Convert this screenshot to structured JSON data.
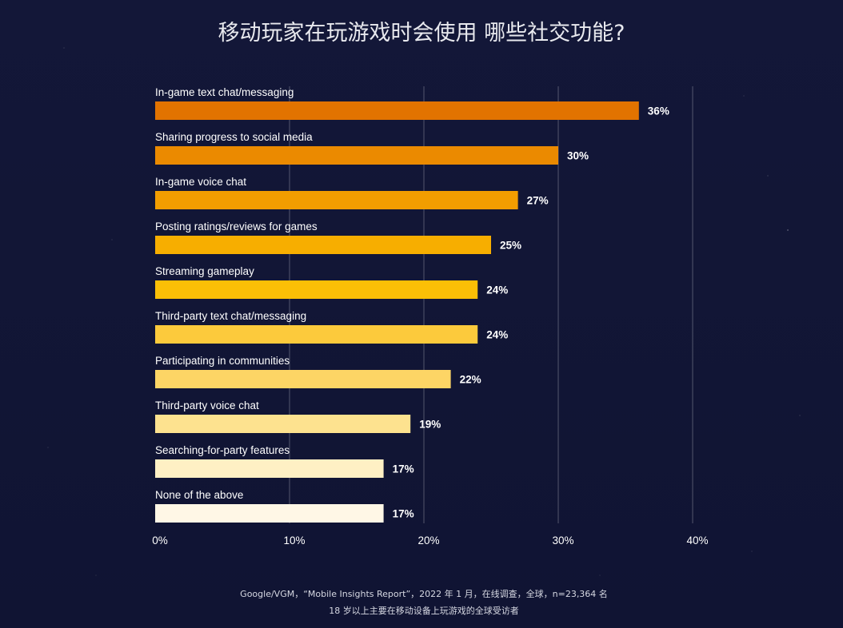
{
  "colors": {
    "background": "#12163a",
    "bars": [
      "#e27300",
      "#eb8a00",
      "#f29d00",
      "#f7ae00",
      "#fbbf06",
      "#fcca3c",
      "#fdd565",
      "#fde28f",
      "#fef0c4",
      "#fff7e6"
    ]
  },
  "footer": {
    "line1": "Google/VGM，“Mobile Insights Report”，2022 年 1 月，在线调查，全球，n=23,364 名",
    "line2": "18 岁以上主要在移动设备上玩游戏的全球受访者"
  },
  "chart_data": {
    "type": "bar",
    "orientation": "horizontal",
    "title": "移动玩家在玩游戏时会使用 哪些社交功能?",
    "categories": [
      "In-game text chat/messaging",
      "Sharing progress to social media",
      "In-game voice chat",
      "Posting ratings/reviews for games",
      "Streaming gameplay",
      "Third-party text chat/messaging",
      "Participating in communities",
      "Third-party voice chat",
      "Searching-for-party features",
      "None of the above"
    ],
    "values": [
      36,
      30,
      27,
      25,
      24,
      24,
      22,
      19,
      17,
      17
    ],
    "value_labels": [
      "36%",
      "30%",
      "27%",
      "25%",
      "24%",
      "24%",
      "22%",
      "19%",
      "17%",
      "17%"
    ],
    "xlim": [
      0,
      40
    ],
    "xticks": [
      0,
      10,
      20,
      30,
      40
    ],
    "xtick_labels": [
      "0%",
      "10%",
      "20%",
      "30%",
      "40%"
    ],
    "grid": "vertical"
  }
}
